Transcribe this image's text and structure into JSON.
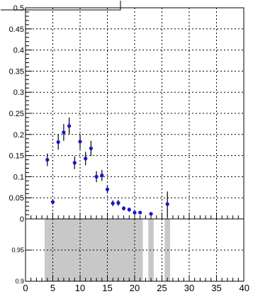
{
  "chart_data": [
    {
      "type": "scatter",
      "title": "",
      "xlabel": "",
      "ylabel": "",
      "xlim": [
        0,
        40
      ],
      "ylim": [
        0,
        0.5
      ],
      "grid": true,
      "x_ticks": [
        "5",
        "10",
        "15",
        "20",
        "25",
        "30",
        "35",
        "40"
      ],
      "y_ticks": [
        "0",
        "0.05",
        "0.1",
        "0.15",
        "0.2",
        "0.25",
        "0.3",
        "0.35",
        "0.4",
        "0.45",
        "0.5"
      ],
      "series": [
        {
          "marker_color": "#1414d2",
          "points": [
            {
              "x": 4,
              "y": 0.14,
              "err": 0.015
            },
            {
              "x": 5,
              "y": 0.04,
              "err": 0.006
            },
            {
              "x": 6,
              "y": 0.182,
              "err": 0.018
            },
            {
              "x": 7,
              "y": 0.205,
              "err": 0.02
            },
            {
              "x": 8,
              "y": 0.22,
              "err": 0.02
            },
            {
              "x": 9,
              "y": 0.133,
              "err": 0.015
            },
            {
              "x": 10,
              "y": 0.183,
              "err": 0.018
            },
            {
              "x": 11,
              "y": 0.143,
              "err": 0.016
            },
            {
              "x": 12,
              "y": 0.167,
              "err": 0.018
            },
            {
              "x": 13,
              "y": 0.1,
              "err": 0.013
            },
            {
              "x": 14,
              "y": 0.103,
              "err": 0.013
            },
            {
              "x": 15,
              "y": 0.07,
              "err": 0.01
            },
            {
              "x": 16,
              "y": 0.037,
              "err": 0.007
            },
            {
              "x": 17,
              "y": 0.038,
              "err": 0.007
            },
            {
              "x": 18,
              "y": 0.025,
              "err": 0.005
            },
            {
              "x": 19,
              "y": 0.022,
              "err": 0.005
            },
            {
              "x": 20,
              "y": 0.015,
              "err": 0.004
            },
            {
              "x": 21,
              "y": 0.015,
              "err": 0.004
            },
            {
              "x": 23,
              "y": 0.012,
              "err": 0.004
            },
            {
              "x": 26,
              "y": 0.035,
              "err": 0.03
            }
          ]
        }
      ]
    },
    {
      "type": "bar",
      "title": "",
      "xlabel": "",
      "ylabel": "",
      "xlim": [
        0,
        40
      ],
      "ylim": [
        0.9,
        1.0
      ],
      "grid": true,
      "x_ticks": [
        "0",
        "5",
        "10",
        "15",
        "20",
        "25",
        "30",
        "35",
        "40"
      ],
      "y_ticks": [
        "0.9",
        "0.95"
      ],
      "bar_color": "#c8c8c8",
      "bars": [
        {
          "x0": 3.5,
          "x1": 21.5,
          "value": 1.0
        },
        {
          "x0": 22.5,
          "x1": 23.5,
          "value": 1.0
        },
        {
          "x0": 25.5,
          "x1": 26.5,
          "value": 1.0
        }
      ]
    }
  ]
}
